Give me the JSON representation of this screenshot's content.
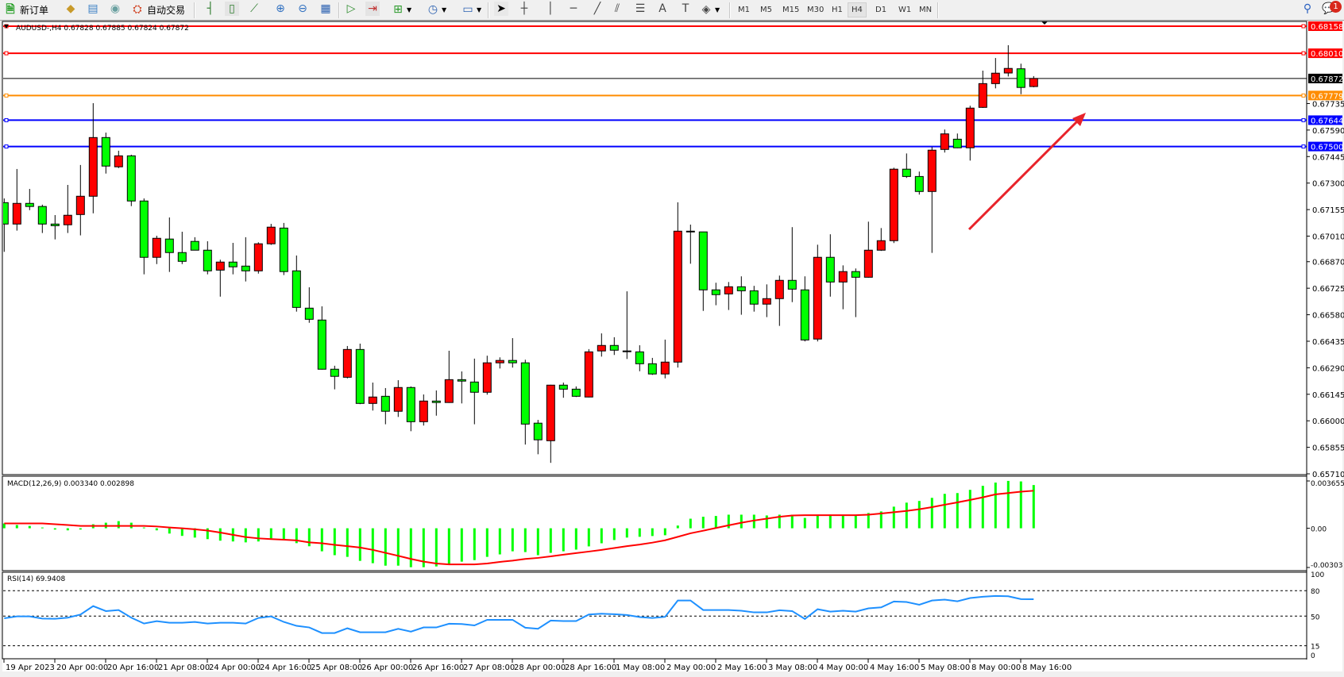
{
  "toolbar": {
    "new_order": {
      "label": "新订单",
      "icon": "new-order-icon"
    },
    "auto_trading": {
      "label": "自动交易",
      "icon": "auto-trading-icon"
    },
    "tools": [
      "market-watch-icon",
      "data-window-icon",
      "navigator-icon",
      "bar-chart-icon",
      "candlestick-icon",
      "line-chart-icon",
      "zoom-in-icon",
      "zoom-out-icon",
      "tile-windows-icon",
      "chart-shift-icon",
      "autoscroll-icon",
      "indicators-icon",
      "periods-icon",
      "templates-icon",
      "cursor-icon",
      "crosshair-icon",
      "vertical-line-icon",
      "horizontal-line-icon",
      "trendline-icon",
      "equidistant-channel-icon",
      "fibonacci-icon",
      "text-icon",
      "text-label-icon",
      "shapes-icon"
    ],
    "timeframes": [
      "M1",
      "M5",
      "M15",
      "M30",
      "H1",
      "H4",
      "D1",
      "W1",
      "MN"
    ],
    "active_timeframe": "H4",
    "notification_count": "1"
  },
  "chart_header": "AUDUSD-,H4  0.67828 0.67885 0.67824 0.67872",
  "colors": {
    "bull": "#ff0000",
    "bear": "#00ff00",
    "macd_hist": "#00ff00",
    "macd_signal": "#ff0000",
    "rsi": "#1e90ff",
    "arrow": "#e8232a"
  },
  "chart_data": {
    "type": "candlestick",
    "symbol": "AUDUSD-",
    "timeframe": "H4",
    "price_range": [
      0.6571,
      0.68158
    ],
    "price_ticks": [
      "0.67735",
      "0.67590",
      "0.67445",
      "0.67300",
      "0.67155",
      "0.67010",
      "0.66870",
      "0.66725",
      "0.66580",
      "0.66435",
      "0.66290",
      "0.66145",
      "0.66000",
      "0.65855",
      "0.65710"
    ],
    "time_labels": [
      "19 Apr 2023",
      "20 Apr 00:00",
      "20 Apr 16:00",
      "21 Apr 08:00",
      "24 Apr 00:00",
      "24 Apr 16:00",
      "25 Apr 08:00",
      "26 Apr 00:00",
      "26 Apr 16:00",
      "27 Apr 08:00",
      "28 Apr 00:00",
      "28 Apr 16:00",
      "1 May 08:00",
      "2 May 00:00",
      "2 May 16:00",
      "3 May 08:00",
      "4 May 00:00",
      "4 May 16:00",
      "5 May 08:00",
      "8 May 00:00",
      "8 May 16:00"
    ],
    "ohlc": [
      [
        0.67193,
        0.67216,
        0.66924,
        0.67076
      ],
      [
        0.67076,
        0.67377,
        0.6704,
        0.67189
      ],
      [
        0.67189,
        0.67268,
        0.67152,
        0.67172
      ],
      [
        0.67172,
        0.67182,
        0.67027,
        0.67076
      ],
      [
        0.67076,
        0.67125,
        0.66992,
        0.67067
      ],
      [
        0.67072,
        0.6729,
        0.67027,
        0.67124
      ],
      [
        0.67128,
        0.67399,
        0.67014,
        0.67228
      ],
      [
        0.67228,
        0.67737,
        0.67135,
        0.67549
      ],
      [
        0.67549,
        0.67576,
        0.67352,
        0.67393
      ],
      [
        0.67389,
        0.67477,
        0.67382,
        0.67449
      ],
      [
        0.67449,
        0.67455,
        0.67174,
        0.67202
      ],
      [
        0.67202,
        0.67216,
        0.66801,
        0.66894
      ],
      [
        0.66894,
        0.67012,
        0.66857,
        0.66998
      ],
      [
        0.66994,
        0.67112,
        0.66814,
        0.6692
      ],
      [
        0.6692,
        0.67034,
        0.66857,
        0.66872
      ],
      [
        0.66981,
        0.67004,
        0.66933,
        0.66933
      ],
      [
        0.66933,
        0.66982,
        0.66801,
        0.6682
      ],
      [
        0.66824,
        0.66881,
        0.66679,
        0.66868
      ],
      [
        0.66868,
        0.66973,
        0.66801,
        0.66842
      ],
      [
        0.66846,
        0.67004,
        0.66762,
        0.6682
      ],
      [
        0.6682,
        0.66976,
        0.66805,
        0.66968
      ],
      [
        0.66968,
        0.67077,
        0.66962,
        0.67059
      ],
      [
        0.67054,
        0.67082,
        0.66797,
        0.66816
      ],
      [
        0.6682,
        0.66904,
        0.66597,
        0.6662
      ],
      [
        0.66616,
        0.6673,
        0.66536,
        0.66555
      ],
      [
        0.66551,
        0.66626,
        0.6628,
        0.66282
      ],
      [
        0.66282,
        0.66301,
        0.66172,
        0.66243
      ],
      [
        0.66238,
        0.66409,
        0.66232,
        0.6639
      ],
      [
        0.6639,
        0.66422,
        0.66091,
        0.66095
      ],
      [
        0.66095,
        0.66209,
        0.66056,
        0.6613
      ],
      [
        0.66134,
        0.66179,
        0.65981,
        0.66052
      ],
      [
        0.66052,
        0.66222,
        0.66021,
        0.66182
      ],
      [
        0.66182,
        0.66188,
        0.65943,
        0.65995
      ],
      [
        0.65995,
        0.66144,
        0.65974,
        0.66108
      ],
      [
        0.66108,
        0.66166,
        0.66028,
        0.661
      ],
      [
        0.661,
        0.66383,
        0.66098,
        0.66225
      ],
      [
        0.66225,
        0.6627,
        0.66095,
        0.66217
      ],
      [
        0.66212,
        0.6634,
        0.65981,
        0.66156
      ],
      [
        0.66156,
        0.66356,
        0.66143,
        0.66317
      ],
      [
        0.66317,
        0.66347,
        0.66286,
        0.6633
      ],
      [
        0.6633,
        0.66452,
        0.66291,
        0.66317
      ],
      [
        0.66317,
        0.66334,
        0.6587,
        0.65982
      ],
      [
        0.65987,
        0.66005,
        0.65817,
        0.65896
      ],
      [
        0.65891,
        0.66197,
        0.6577,
        0.66195
      ],
      [
        0.66195,
        0.66209,
        0.66126,
        0.66173
      ],
      [
        0.66173,
        0.66188,
        0.6613,
        0.66134
      ],
      [
        0.6613,
        0.66392,
        0.66128,
        0.66377
      ],
      [
        0.66382,
        0.66478,
        0.66351,
        0.66412
      ],
      [
        0.66412,
        0.66457,
        0.6636,
        0.66386
      ],
      [
        0.66382,
        0.66708,
        0.66338,
        0.66379
      ],
      [
        0.66377,
        0.66413,
        0.66271,
        0.66312
      ],
      [
        0.66312,
        0.66344,
        0.66251,
        0.66256
      ],
      [
        0.66256,
        0.66444,
        0.66232,
        0.66321
      ],
      [
        0.66321,
        0.67195,
        0.66291,
        0.67037
      ],
      [
        0.67037,
        0.67073,
        0.66859,
        0.67035
      ],
      [
        0.67033,
        0.67034,
        0.66601,
        0.66716
      ],
      [
        0.66716,
        0.66755,
        0.66632,
        0.6669
      ],
      [
        0.66694,
        0.66759,
        0.66606,
        0.66733
      ],
      [
        0.66733,
        0.6679,
        0.6658,
        0.66711
      ],
      [
        0.66711,
        0.66738,
        0.66597,
        0.66638
      ],
      [
        0.66638,
        0.66746,
        0.66567,
        0.66668
      ],
      [
        0.66668,
        0.66794,
        0.66519,
        0.66768
      ],
      [
        0.66768,
        0.67059,
        0.66649,
        0.6672
      ],
      [
        0.66716,
        0.6679,
        0.66434,
        0.66442
      ],
      [
        0.66447,
        0.66963,
        0.66434,
        0.66894
      ],
      [
        0.66894,
        0.6702,
        0.66679,
        0.66759
      ],
      [
        0.66759,
        0.6685,
        0.6661,
        0.66816
      ],
      [
        0.66816,
        0.66833,
        0.66567,
        0.66785
      ],
      [
        0.66785,
        0.67089,
        0.66783,
        0.66933
      ],
      [
        0.66933,
        0.67054,
        0.66929,
        0.66985
      ],
      [
        0.66985,
        0.67384,
        0.66972,
        0.67376
      ],
      [
        0.67376,
        0.67462,
        0.67328,
        0.67336
      ],
      [
        0.67336,
        0.67363,
        0.67237,
        0.67254
      ],
      [
        0.67254,
        0.67497,
        0.66918,
        0.6748
      ],
      [
        0.67484,
        0.67593,
        0.67467,
        0.67569
      ],
      [
        0.6754,
        0.67571,
        0.67491,
        0.67493
      ],
      [
        0.67493,
        0.67723,
        0.67423,
        0.6771
      ],
      [
        0.67714,
        0.67915,
        0.67711,
        0.67844
      ],
      [
        0.67844,
        0.67984,
        0.67818,
        0.67901
      ],
      [
        0.67902,
        0.68054,
        0.67883,
        0.67927
      ],
      [
        0.67925,
        0.67953,
        0.67786,
        0.67823
      ],
      [
        0.67828,
        0.67885,
        0.67824,
        0.67872
      ]
    ],
    "horizontal_lines": [
      {
        "price": "0.68158",
        "color": "#ff0000"
      },
      {
        "price": "0.68010",
        "color": "#ff0000"
      },
      {
        "price": "0.67779",
        "color": "#ff8c00"
      },
      {
        "price": "0.67644",
        "color": "#0000ff"
      },
      {
        "price": "0.67500",
        "color": "#0000ff"
      }
    ],
    "bid_line": {
      "price": "0.67872",
      "color": "#000000"
    },
    "macd": {
      "label": "MACD(12,26,9) 0.003340 0.002898",
      "range": [
        -0.00303,
        0.003655
      ],
      "axis_labels": [
        "0.003655",
        "0.00",
        "-0.00303"
      ],
      "histogram": [
        0.00037,
        0.00025,
        0.00018,
        6e-05,
        -0.0001,
        -0.00016,
        -0.0001,
        0.00031,
        0.00043,
        0.00055,
        0.00043,
        6e-05,
        -0.00016,
        -0.00041,
        -0.00059,
        -0.00072,
        -0.00084,
        -0.00096,
        -0.00102,
        -0.00109,
        -0.00102,
        -0.00078,
        -0.0009,
        -0.00115,
        -0.00139,
        -0.00178,
        -0.00208,
        -0.00221,
        -0.00252,
        -0.0027,
        -0.00289,
        -0.00289,
        -0.00301,
        -0.00301,
        -0.00295,
        -0.00283,
        -0.00258,
        -0.00246,
        -0.00221,
        -0.00202,
        -0.00178,
        -0.00184,
        -0.00208,
        -0.0019,
        -0.00178,
        -0.00165,
        -0.0014,
        -0.00116,
        -0.00091,
        -0.00072,
        -0.00066,
        -0.0006,
        -0.00054,
        0.00021,
        0.00074,
        0.00089,
        0.00095,
        0.00105,
        0.00105,
        0.00105,
        0.00099,
        0.00105,
        0.00105,
        0.0008,
        0.00099,
        0.00099,
        0.00099,
        0.00099,
        0.00118,
        0.0013,
        0.00167,
        0.00198,
        0.00211,
        0.00235,
        0.00266,
        0.00272,
        0.00297,
        0.00328,
        0.00353,
        0.00366,
        0.00362,
        0.00334
      ],
      "signal": [
        0.00037,
        0.00037,
        0.00037,
        0.00037,
        0.00031,
        0.00025,
        0.00018,
        0.00018,
        0.00018,
        0.00018,
        0.00018,
        0.00018,
        0.00014,
        6e-05,
        0.0,
        -8e-05,
        -0.00018,
        -0.00033,
        -0.00051,
        -0.00068,
        -0.00078,
        -0.00084,
        -0.00088,
        -0.00094,
        -0.00109,
        -0.00116,
        -0.00128,
        -0.00138,
        -0.00149,
        -0.00167,
        -0.0019,
        -0.00213,
        -0.00237,
        -0.00258,
        -0.00272,
        -0.00279,
        -0.00279,
        -0.00279,
        -0.00272,
        -0.0026,
        -0.0025,
        -0.00237,
        -0.00229,
        -0.00217,
        -0.00204,
        -0.00192,
        -0.0018,
        -0.00167,
        -0.00153,
        -0.00138,
        -0.00126,
        -0.00111,
        -0.00093,
        -0.00066,
        -0.00039,
        -0.00019,
        2e-05,
        0.00023,
        0.00043,
        0.0006,
        0.00074,
        0.00089,
        0.00099,
        0.00101,
        0.00101,
        0.00101,
        0.00101,
        0.00101,
        0.00105,
        0.00114,
        0.00124,
        0.00134,
        0.00147,
        0.00163,
        0.00182,
        0.002,
        0.00219,
        0.00239,
        0.00262,
        0.00272,
        0.00283,
        0.0029
      ]
    },
    "rsi": {
      "label": "RSI(14) 69.9408",
      "levels": [
        80,
        50,
        15
      ],
      "axis_labels": [
        "100",
        "80",
        "50",
        "15",
        "0"
      ],
      "values": [
        47.4,
        49.6,
        49.6,
        47.1,
        46.8,
        48.1,
        51.8,
        61.8,
        55.9,
        57.1,
        48.1,
        41.2,
        44.0,
        42.2,
        42.2,
        43.1,
        41.2,
        42.2,
        42.2,
        41.2,
        47.8,
        49.6,
        43.1,
        38.5,
        36.6,
        30.0,
        30.0,
        35.6,
        30.9,
        30.9,
        30.9,
        35.0,
        31.6,
        36.6,
        36.6,
        41.0,
        40.6,
        39.0,
        45.6,
        45.6,
        45.6,
        36.3,
        35.0,
        44.7,
        44.1,
        44.1,
        51.9,
        52.8,
        52.2,
        51.3,
        48.8,
        47.8,
        49.1,
        68.4,
        68.4,
        57.2,
        57.2,
        57.2,
        56.3,
        54.4,
        54.4,
        56.9,
        55.9,
        46.6,
        58.1,
        55.3,
        56.3,
        55.3,
        59.1,
        60.3,
        67.2,
        66.6,
        63.4,
        68.4,
        69.4,
        67.5,
        71.3,
        72.8,
        73.8,
        73.4,
        70.0,
        69.94
      ]
    }
  }
}
